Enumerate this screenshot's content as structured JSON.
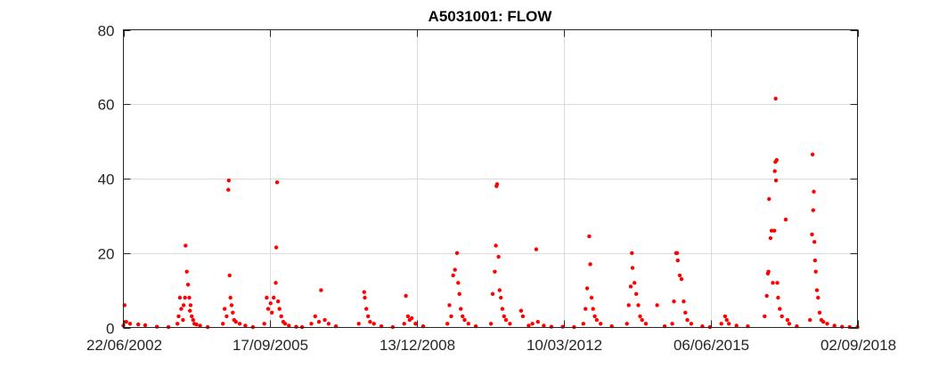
{
  "chart_data": {
    "type": "scatter",
    "title": "A5031001: FLOW",
    "xlabel": "",
    "ylabel": "",
    "x_axis": "date",
    "xlim": [
      "22/06/2002",
      "02/09/2018"
    ],
    "ylim": [
      0,
      80
    ],
    "xticks": [
      "22/06/2002",
      "17/09/2005",
      "13/12/2008",
      "10/03/2012",
      "06/06/2015",
      "02/09/2018"
    ],
    "yticks": [
      0,
      20,
      40,
      60,
      80
    ],
    "grid": true,
    "marker_color": "#ff0000",
    "series": [
      {
        "points": [
          [
            "22/06/2002",
            0.5
          ],
          [
            "01/07/2002",
            6.0
          ],
          [
            "15/07/2002",
            1.5
          ],
          [
            "15/08/2002",
            1.0
          ],
          [
            "20/10/2002",
            0.8
          ],
          [
            "15/12/2002",
            0.6
          ],
          [
            "20/03/2003",
            0.2
          ],
          [
            "20/06/2003",
            0.1
          ],
          [
            "01/09/2003",
            1.0
          ],
          [
            "10/09/2003",
            3.0
          ],
          [
            "20/09/2003",
            8.0
          ],
          [
            "01/10/2003",
            5.0
          ],
          [
            "15/10/2003",
            2.0
          ],
          [
            "20/10/2003",
            6.0
          ],
          [
            "01/11/2003",
            8.0
          ],
          [
            "05/11/2003",
            22.0
          ],
          [
            "15/11/2003",
            15.0
          ],
          [
            "25/11/2003",
            11.5
          ],
          [
            "05/12/2003",
            8.0
          ],
          [
            "10/12/2003",
            4.5
          ],
          [
            "15/12/2003",
            6.0
          ],
          [
            "25/12/2003",
            3.0
          ],
          [
            "05/01/2004",
            2.0
          ],
          [
            "15/01/2004",
            1.0
          ],
          [
            "01/02/2004",
            0.8
          ],
          [
            "01/03/2004",
            0.5
          ],
          [
            "01/05/2004",
            0.1
          ],
          [
            "01/09/2004",
            1.0
          ],
          [
            "15/09/2004",
            5.0
          ],
          [
            "01/10/2004",
            3.0
          ],
          [
            "15/10/2004",
            37.0
          ],
          [
            "18/10/2004",
            39.5
          ],
          [
            "25/10/2004",
            14.0
          ],
          [
            "01/11/2004",
            8.0
          ],
          [
            "10/11/2004",
            6.0
          ],
          [
            "20/11/2004",
            4.0
          ],
          [
            "01/12/2004",
            2.0
          ],
          [
            "15/12/2004",
            1.5
          ],
          [
            "15/01/2005",
            1.0
          ],
          [
            "01/03/2005",
            0.5
          ],
          [
            "01/05/2005",
            0.1
          ],
          [
            "01/08/2005",
            1.0
          ],
          [
            "20/08/2005",
            8.0
          ],
          [
            "01/09/2005",
            5.0
          ],
          [
            "20/09/2005",
            6.5
          ],
          [
            "01/10/2005",
            4.0
          ],
          [
            "15/10/2005",
            8.0
          ],
          [
            "01/11/2005",
            12.0
          ],
          [
            "05/11/2005",
            21.5
          ],
          [
            "12/11/2005",
            39.0
          ],
          [
            "20/11/2005",
            7.0
          ],
          [
            "01/12/2005",
            5.0
          ],
          [
            "15/12/2005",
            3.0
          ],
          [
            "01/01/2006",
            1.5
          ],
          [
            "15/01/2006",
            1.0
          ],
          [
            "15/02/2006",
            0.5
          ],
          [
            "15/04/2006",
            0.2
          ],
          [
            "01/06/2006",
            0.1
          ],
          [
            "15/08/2006",
            1.0
          ],
          [
            "15/09/2006",
            3.0
          ],
          [
            "15/10/2006",
            1.5
          ],
          [
            "01/11/2006",
            10.0
          ],
          [
            "01/12/2006",
            2.0
          ],
          [
            "01/01/2007",
            1.0
          ],
          [
            "01/03/2007",
            0.3
          ],
          [
            "01/09/2007",
            1.0
          ],
          [
            "15/10/2007",
            9.5
          ],
          [
            "20/10/2007",
            8.0
          ],
          [
            "01/11/2007",
            5.0
          ],
          [
            "15/11/2007",
            3.0
          ],
          [
            "01/12/2007",
            1.5
          ],
          [
            "01/01/2008",
            1.0
          ],
          [
            "01/03/2008",
            0.3
          ],
          [
            "01/06/2008",
            0.1
          ],
          [
            "01/09/2008",
            1.0
          ],
          [
            "15/09/2008",
            8.5
          ],
          [
            "01/10/2008",
            3.0
          ],
          [
            "15/10/2008",
            2.0
          ],
          [
            "01/11/2008",
            2.5
          ],
          [
            "01/12/2008",
            1.0
          ],
          [
            "01/02/2009",
            0.3
          ],
          [
            "15/08/2009",
            1.0
          ],
          [
            "01/09/2009",
            6.0
          ],
          [
            "15/09/2009",
            3.0
          ],
          [
            "01/10/2009",
            14.0
          ],
          [
            "15/10/2009",
            15.5
          ],
          [
            "01/11/2009",
            20.0
          ],
          [
            "10/11/2009",
            12.0
          ],
          [
            "20/11/2009",
            9.0
          ],
          [
            "01/12/2009",
            5.0
          ],
          [
            "15/12/2009",
            3.0
          ],
          [
            "01/01/2010",
            2.0
          ],
          [
            "01/02/2010",
            1.0
          ],
          [
            "01/04/2010",
            0.3
          ],
          [
            "01/08/2010",
            1.0
          ],
          [
            "15/08/2010",
            9.0
          ],
          [
            "01/09/2010",
            15.0
          ],
          [
            "10/09/2010",
            22.0
          ],
          [
            "15/09/2010",
            38.0
          ],
          [
            "20/09/2010",
            38.5
          ],
          [
            "01/10/2010",
            19.0
          ],
          [
            "10/10/2010",
            10.0
          ],
          [
            "20/10/2010",
            8.0
          ],
          [
            "01/11/2010",
            5.0
          ],
          [
            "15/11/2010",
            3.0
          ],
          [
            "01/12/2010",
            2.0
          ],
          [
            "01/01/2011",
            1.0
          ],
          [
            "01/04/2011",
            4.5
          ],
          [
            "15/04/2011",
            3.0
          ],
          [
            "01/06/2011",
            0.5
          ],
          [
            "01/07/2011",
            1.0
          ],
          [
            "01/08/2011",
            21.0
          ],
          [
            "15/08/2011",
            1.5
          ],
          [
            "01/10/2011",
            0.5
          ],
          [
            "01/12/2011",
            0.2
          ],
          [
            "01/03/2012",
            0.2
          ],
          [
            "01/06/2012",
            0.1
          ],
          [
            "15/08/2012",
            1.0
          ],
          [
            "01/09/2012",
            5.0
          ],
          [
            "15/09/2012",
            10.5
          ],
          [
            "01/10/2012",
            24.5
          ],
          [
            "10/10/2012",
            17.0
          ],
          [
            "20/10/2012",
            8.0
          ],
          [
            "01/11/2012",
            5.0
          ],
          [
            "15/11/2012",
            3.0
          ],
          [
            "01/12/2012",
            2.0
          ],
          [
            "01/01/2013",
            1.0
          ],
          [
            "01/04/2013",
            0.3
          ],
          [
            "01/08/2013",
            1.0
          ],
          [
            "15/08/2013",
            6.0
          ],
          [
            "01/09/2013",
            11.0
          ],
          [
            "10/09/2013",
            20.0
          ],
          [
            "15/09/2013",
            16.0
          ],
          [
            "01/10/2013",
            12.0
          ],
          [
            "15/10/2013",
            9.0
          ],
          [
            "01/11/2013",
            6.0
          ],
          [
            "15/11/2013",
            3.0
          ],
          [
            "01/12/2013",
            2.0
          ],
          [
            "01/01/2014",
            1.0
          ],
          [
            "01/04/2014",
            6.0
          ],
          [
            "01/06/2014",
            0.3
          ],
          [
            "01/08/2014",
            1.0
          ],
          [
            "15/08/2014",
            7.0
          ],
          [
            "01/09/2014",
            20.0
          ],
          [
            "10/09/2014",
            20.0
          ],
          [
            "15/09/2014",
            18.0
          ],
          [
            "01/10/2014",
            14.0
          ],
          [
            "15/10/2014",
            13.0
          ],
          [
            "01/11/2014",
            7.0
          ],
          [
            "15/11/2014",
            4.0
          ],
          [
            "01/12/2014",
            2.0
          ],
          [
            "01/01/2015",
            1.0
          ],
          [
            "01/04/2015",
            0.3
          ],
          [
            "01/06/2015",
            0.1
          ],
          [
            "01/09/2015",
            1.0
          ],
          [
            "01/10/2015",
            3.0
          ],
          [
            "15/10/2015",
            2.0
          ],
          [
            "01/11/2015",
            1.0
          ],
          [
            "01/01/2016",
            0.5
          ],
          [
            "01/04/2016",
            0.3
          ],
          [
            "15/08/2016",
            3.0
          ],
          [
            "01/09/2016",
            8.5
          ],
          [
            "10/09/2016",
            14.5
          ],
          [
            "15/09/2016",
            15.0
          ],
          [
            "20/09/2016",
            34.5
          ],
          [
            "01/10/2016",
            24.0
          ],
          [
            "10/10/2016",
            26.0
          ],
          [
            "20/10/2016",
            12.0
          ],
          [
            "01/11/2016",
            26.0
          ],
          [
            "05/11/2016",
            42.0
          ],
          [
            "10/11/2016",
            44.5
          ],
          [
            "12/11/2016",
            61.5
          ],
          [
            "15/11/2016",
            39.5
          ],
          [
            "20/11/2016",
            45.0
          ],
          [
            "25/11/2016",
            12.0
          ],
          [
            "01/12/2016",
            8.0
          ],
          [
            "15/12/2016",
            5.0
          ],
          [
            "01/01/2017",
            3.0
          ],
          [
            "01/02/2017",
            29.0
          ],
          [
            "15/02/2017",
            2.0
          ],
          [
            "01/03/2017",
            1.0
          ],
          [
            "01/05/2017",
            0.3
          ],
          [
            "15/08/2017",
            2.0
          ],
          [
            "01/09/2017",
            25.0
          ],
          [
            "05/09/2017",
            46.5
          ],
          [
            "10/09/2017",
            31.5
          ],
          [
            "15/09/2017",
            36.5
          ],
          [
            "20/09/2017",
            23.0
          ],
          [
            "25/09/2017",
            18.0
          ],
          [
            "01/10/2017",
            15.0
          ],
          [
            "10/10/2017",
            10.0
          ],
          [
            "20/10/2017",
            8.0
          ],
          [
            "01/11/2017",
            4.0
          ],
          [
            "15/11/2017",
            2.0
          ],
          [
            "01/12/2017",
            1.5
          ],
          [
            "01/01/2018",
            1.0
          ],
          [
            "01/03/2018",
            0.5
          ],
          [
            "01/05/2018",
            0.2
          ],
          [
            "01/07/2018",
            0.1
          ],
          [
            "02/09/2018",
            0.1
          ]
        ]
      }
    ]
  }
}
